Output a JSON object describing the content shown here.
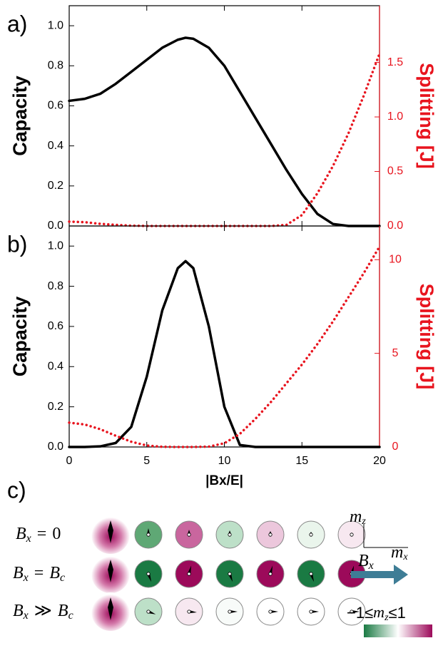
{
  "chart_data": [
    {
      "type": "line",
      "panel_label": "a)",
      "ylabel": "Capacity",
      "y2label": "Splitting [J]",
      "show_xtick_labels": false,
      "x": [
        0,
        1,
        2,
        3,
        4,
        5,
        6,
        7,
        7.5,
        8,
        9,
        10,
        11,
        12,
        13,
        14,
        15,
        16,
        17,
        18,
        19,
        20
      ],
      "xlim": [
        0,
        20
      ],
      "xticks": [
        0,
        5,
        10,
        15,
        20
      ],
      "ylim": [
        0,
        1.1
      ],
      "yticks": [
        {
          "value": 0,
          "label": "0.0"
        },
        0.2,
        0.4,
        0.6,
        0.8,
        {
          "value": 1,
          "label": "1.0"
        }
      ],
      "y2lim": [
        0,
        2.02
      ],
      "y2ticks": [
        {
          "value": 0,
          "label": "0.0"
        },
        0.5,
        {
          "value": 1,
          "label": "1.0"
        },
        1.5
      ],
      "series": [
        {
          "color": "#000000",
          "style": "solid",
          "values": [
            0.625,
            0.635,
            0.66,
            0.71,
            0.77,
            0.83,
            0.89,
            0.93,
            0.94,
            0.935,
            0.89,
            0.8,
            0.67,
            0.54,
            0.41,
            0.28,
            0.16,
            0.06,
            0.01,
            0,
            0,
            0
          ]
        },
        {
          "color": "#e8141e",
          "style": "dotted",
          "axis": "y2",
          "values": [
            0.04,
            0.035,
            0.02,
            0.01,
            0.003,
            0,
            0,
            0,
            0,
            0,
            0,
            0,
            0,
            0,
            0,
            0.01,
            0.1,
            0.3,
            0.55,
            0.85,
            1.2,
            1.58
          ]
        }
      ]
    },
    {
      "type": "line",
      "panel_label": "b)",
      "ylabel": "Capacity",
      "y2label": "Splitting [J]",
      "xlabel": "|Bx/E|",
      "show_xtick_labels": true,
      "x": [
        0,
        1,
        2,
        3,
        4,
        5,
        6,
        7,
        7.5,
        8,
        9,
        10,
        11,
        12,
        13,
        14,
        15,
        16,
        17,
        18,
        19,
        20
      ],
      "xlim": [
        0,
        20
      ],
      "xticks": [
        0,
        5,
        10,
        15,
        20
      ],
      "ylim": [
        0,
        1.1
      ],
      "yticks": [
        {
          "value": 0,
          "label": "0.0"
        },
        0.2,
        0.4,
        0.6,
        0.8,
        {
          "value": 1,
          "label": "1.0"
        }
      ],
      "y2lim": [
        0,
        11.8
      ],
      "y2ticks": [
        0,
        5,
        10
      ],
      "series": [
        {
          "color": "#000000",
          "style": "solid",
          "values": [
            0,
            0,
            0.003,
            0.02,
            0.1,
            0.35,
            0.68,
            0.89,
            0.925,
            0.89,
            0.6,
            0.2,
            0.01,
            0,
            0,
            0,
            0,
            0,
            0,
            0,
            0,
            0
          ]
        },
        {
          "color": "#e8141e",
          "style": "dotted",
          "axis": "y2",
          "values": [
            1.3,
            1.2,
            0.95,
            0.6,
            0.28,
            0.08,
            0.01,
            0,
            0,
            0,
            0.02,
            0.2,
            0.7,
            1.5,
            2.4,
            3.4,
            4.4,
            5.5,
            6.7,
            8.0,
            9.3,
            10.7
          ]
        }
      ]
    }
  ],
  "panel_c": {
    "label": "c)",
    "rows": [
      {
        "lhs": {
          "base": "B",
          "sub": "x"
        },
        "op": "=",
        "rhs": {
          "base": "0"
        }
      },
      {
        "lhs": {
          "base": "B",
          "sub": "x"
        },
        "op": "=",
        "rhs": {
          "base": "B",
          "sub": "c"
        }
      },
      {
        "lhs": {
          "base": "B",
          "sub": "x"
        },
        "op": "≫",
        "rhs": {
          "base": "B",
          "sub": "c"
        }
      }
    ],
    "axis_z": {
      "base": "m",
      "sub": "z"
    },
    "axis_x": {
      "base": "m",
      "sub": "x"
    },
    "field": {
      "base": "B",
      "sub": "x"
    },
    "colorbar": {
      "left": "−1≤",
      "base": "m",
      "sub": "z",
      "right": "≤1"
    }
  }
}
